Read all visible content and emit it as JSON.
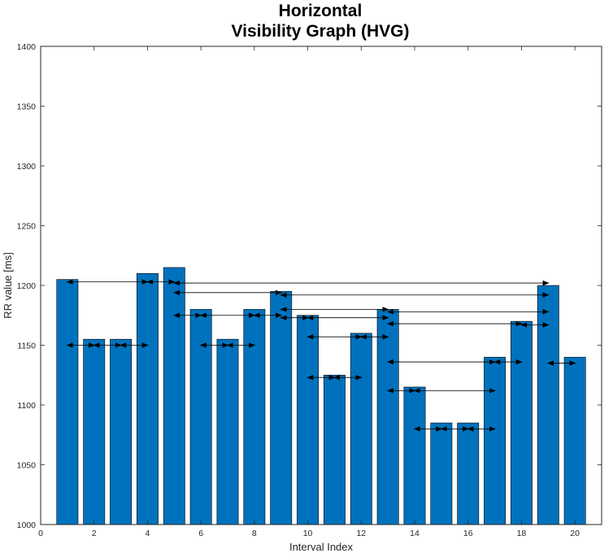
{
  "chart_data": {
    "type": "bar",
    "title": [
      "Horizontal",
      "Visibility Graph (HVG)"
    ],
    "xlabel": "Interval Index",
    "ylabel": "RR value [ms]",
    "xlim": [
      0,
      21
    ],
    "ylim": [
      1000,
      1400
    ],
    "xticks": [
      0,
      2,
      4,
      6,
      8,
      10,
      12,
      14,
      16,
      18,
      20
    ],
    "yticks": [
      1000,
      1050,
      1100,
      1150,
      1200,
      1250,
      1300,
      1350,
      1400
    ],
    "grid": false,
    "bar_color": "#0072BD",
    "x": [
      1,
      2,
      3,
      4,
      5,
      6,
      7,
      8,
      9,
      10,
      11,
      12,
      13,
      14,
      15,
      16,
      17,
      18,
      19,
      20
    ],
    "values": [
      1205,
      1155,
      1155,
      1210,
      1215,
      1180,
      1155,
      1180,
      1195,
      1175,
      1125,
      1160,
      1180,
      1115,
      1085,
      1085,
      1140,
      1170,
      1200,
      1140
    ],
    "visibility_edges": [
      {
        "from": 1,
        "to": 2,
        "y": 1150
      },
      {
        "from": 2,
        "to": 3,
        "y": 1150
      },
      {
        "from": 3,
        "to": 4,
        "y": 1150
      },
      {
        "from": 1,
        "to": 4,
        "y": 1203
      },
      {
        "from": 4,
        "to": 5,
        "y": 1203
      },
      {
        "from": 5,
        "to": 19,
        "y": 1202
      },
      {
        "from": 5,
        "to": 9,
        "y": 1194
      },
      {
        "from": 9,
        "to": 19,
        "y": 1192
      },
      {
        "from": 5,
        "to": 6,
        "y": 1175
      },
      {
        "from": 6,
        "to": 7,
        "y": 1150
      },
      {
        "from": 7,
        "to": 8,
        "y": 1150
      },
      {
        "from": 6,
        "to": 8,
        "y": 1175
      },
      {
        "from": 8,
        "to": 9,
        "y": 1175
      },
      {
        "from": 9,
        "to": 10,
        "y": 1173
      },
      {
        "from": 10,
        "to": 13,
        "y": 1173
      },
      {
        "from": 9,
        "to": 13,
        "y": 1180
      },
      {
        "from": 13,
        "to": 19,
        "y": 1178
      },
      {
        "from": 13,
        "to": 18,
        "y": 1168
      },
      {
        "from": 18,
        "to": 19,
        "y": 1167
      },
      {
        "from": 10,
        "to": 12,
        "y": 1157
      },
      {
        "from": 12,
        "to": 13,
        "y": 1157
      },
      {
        "from": 10,
        "to": 11,
        "y": 1123
      },
      {
        "from": 11,
        "to": 12,
        "y": 1123
      },
      {
        "from": 13,
        "to": 17,
        "y": 1136
      },
      {
        "from": 17,
        "to": 18,
        "y": 1136
      },
      {
        "from": 19,
        "to": 20,
        "y": 1135
      },
      {
        "from": 13,
        "to": 14,
        "y": 1112
      },
      {
        "from": 14,
        "to": 17,
        "y": 1112
      },
      {
        "from": 14,
        "to": 15,
        "y": 1080
      },
      {
        "from": 15,
        "to": 16,
        "y": 1080
      },
      {
        "from": 16,
        "to": 17,
        "y": 1080
      }
    ]
  }
}
